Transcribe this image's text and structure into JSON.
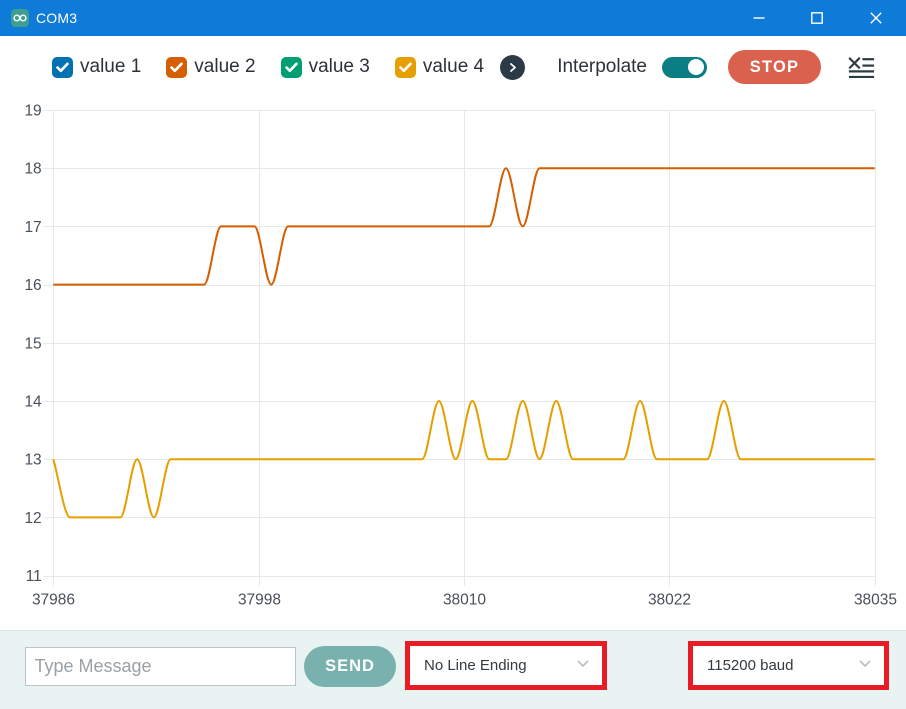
{
  "window": {
    "title": "COM3",
    "icon": "arduino-logo-icon",
    "controls": {
      "minimize": "minimize",
      "maximize": "maximize",
      "close": "close"
    }
  },
  "colors": {
    "titlebar": "#0f7bd8",
    "toolbar_bg": "#ffffff",
    "bottombar_bg": "#e9f3f1",
    "send_button": "#78b1ae",
    "stop_button": "#d9614e",
    "toggle_on": "#0a7e83",
    "highlight_box": "#e81c24",
    "grid_line": "#e4e9e9",
    "tick_text": "#49505a",
    "legend_scroll_circle": "#2b3a46"
  },
  "toolbar": {
    "series_toggles": [
      {
        "label": "value 1",
        "color": "#0072B2",
        "checked": true
      },
      {
        "label": "value 2",
        "color": "#D55E00",
        "checked": true
      },
      {
        "label": "value 3",
        "color": "#009E73",
        "checked": true
      },
      {
        "label": "value 4",
        "color": "#E69F00",
        "checked": true
      }
    ],
    "legend_scroll_icon": "chevron-right",
    "interpolate": {
      "label": "Interpolate",
      "on": true
    },
    "stop_button_label": "STOP",
    "clear_icon": "clear-chart"
  },
  "chart_data": {
    "type": "line",
    "x_start": 37986,
    "x_step": 1,
    "xlim": [
      37986,
      38035
    ],
    "ylim": [
      11,
      19
    ],
    "x_ticks": [
      37986,
      37998,
      38010,
      38022,
      38035
    ],
    "y_ticks": [
      11,
      12,
      13,
      14,
      15,
      16,
      17,
      18,
      19
    ],
    "grid": true,
    "interpolation": "monotone",
    "series": [
      {
        "name": "value 2",
        "color": "#D55E00",
        "values": [
          16,
          16,
          16,
          16,
          16,
          16,
          16,
          16,
          16,
          16,
          17,
          17,
          17,
          16,
          17,
          17,
          17,
          17,
          17,
          17,
          17,
          17,
          17,
          17,
          17,
          17,
          17,
          18,
          17,
          18,
          18,
          18,
          18,
          18,
          18,
          18,
          18,
          18,
          18,
          18,
          18,
          18,
          18,
          18,
          18,
          18,
          18,
          18,
          18,
          18
        ]
      },
      {
        "name": "value 4",
        "color": "#E69F00",
        "values": [
          13,
          12,
          12,
          12,
          12,
          13,
          12,
          13,
          13,
          13,
          13,
          13,
          13,
          13,
          13,
          13,
          13,
          13,
          13,
          13,
          13,
          13,
          13,
          14,
          13,
          14,
          13,
          13,
          14,
          13,
          14,
          13,
          13,
          13,
          13,
          14,
          13,
          13,
          13,
          13,
          14,
          13,
          13,
          13,
          13,
          13,
          13,
          13,
          13,
          13
        ]
      }
    ]
  },
  "bottom_bar": {
    "message_input": {
      "placeholder": "Type Message",
      "value": ""
    },
    "send_button_label": "SEND",
    "line_ending_select": {
      "value": "No Line Ending",
      "highlighted": true
    },
    "baud_select": {
      "value": "115200 baud",
      "highlighted": true
    }
  }
}
